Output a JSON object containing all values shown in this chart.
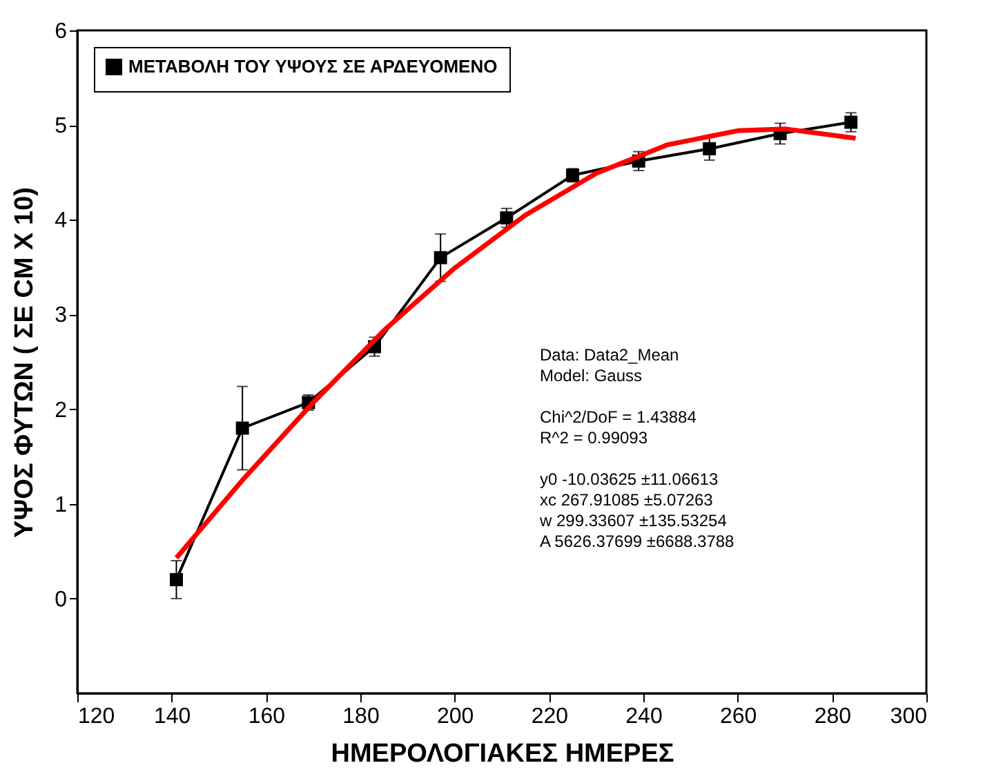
{
  "chart_data": {
    "type": "line",
    "xlabel": "ΗΜΕΡΟΛΟΓΙΑΚΕΣ ΗΜΕΡΕΣ",
    "ylabel": "ΥΨΟΣ ΦΥΤΩΝ ( ΣΕ CM X 10)",
    "xlim": [
      120,
      300
    ],
    "xticks": [
      120,
      140,
      160,
      180,
      200,
      220,
      240,
      260,
      280,
      300
    ],
    "ylim": [
      -1,
      6
    ],
    "yticks": [
      0,
      1,
      2,
      3,
      4,
      5,
      6
    ],
    "grid": false,
    "legend": "top left",
    "series": [
      {
        "name": "ΜΕΤΑΒΟΛΗ ΤΟΥ ΥΨΟΥΣ ΣΕ ΑΡΔΕΥΟΜΕΝΟ",
        "color": "#000000",
        "marker": "square",
        "x": [
          141,
          155,
          169,
          183,
          197,
          211,
          225,
          239,
          254,
          269,
          284
        ],
        "values": [
          0.2,
          1.8,
          2.07,
          2.66,
          3.6,
          4.02,
          4.47,
          4.62,
          4.75,
          4.91,
          5.03
        ],
        "errors": [
          0.2,
          0.44,
          0.08,
          0.1,
          0.25,
          0.1,
          0.07,
          0.1,
          0.12,
          0.11,
          0.1
        ]
      },
      {
        "color": "#ff0000",
        "marker": "none",
        "x": [
          141,
          155,
          170,
          185,
          200,
          215,
          230,
          245,
          260,
          270,
          285
        ],
        "values": [
          0.43,
          1.25,
          2.07,
          2.83,
          3.49,
          4.05,
          4.49,
          4.79,
          4.94,
          4.96,
          4.86
        ]
      }
    ],
    "annotations": [
      "Data: Data2_Mean",
      "Model: Gauss",
      "Chi^2/DoF       = 1.43884",
      "R^2    = 0.99093",
      "y0       -10.03625        ±11.06613",
      "xc       267.91085        ±5.07263",
      "w        299.33607        ±135.53254",
      "A        5626.37699       ±6688.3788"
    ]
  }
}
